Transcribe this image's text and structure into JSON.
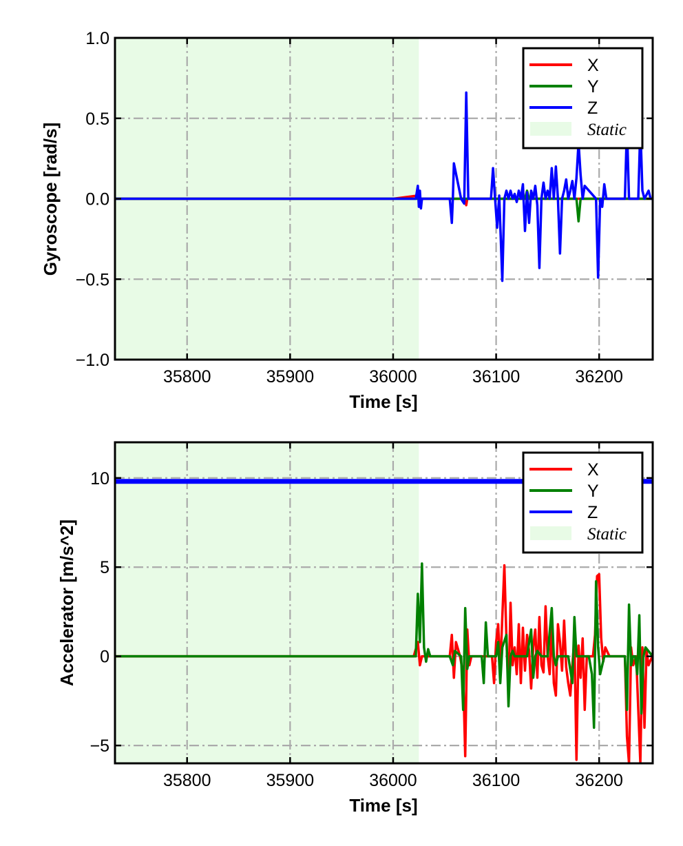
{
  "chart_data": [
    {
      "type": "line",
      "xlabel": "Time [s]",
      "ylabel": "Gyroscope [rad/s]",
      "xlim": [
        35730,
        36252
      ],
      "ylim": [
        -1.0,
        1.0
      ],
      "xticks": [
        35800,
        35900,
        36000,
        36100,
        36200
      ],
      "xtick_labels": [
        "35800",
        "35900",
        "36000",
        "36100",
        "36200"
      ],
      "yticks": [
        1.0,
        0.5,
        0.0,
        -0.5,
        -1.0
      ],
      "ytick_labels": [
        "1.0",
        "0.5",
        "0.0",
        "−0.5",
        "−1.0"
      ],
      "grid": true,
      "legend_position": "top-right",
      "static_region": {
        "label": "Static",
        "x_range": [
          35730,
          36025
        ],
        "color": "#e8fbe6"
      },
      "series": [
        {
          "name": "X",
          "color": "#ff0000",
          "x": [
            35730,
            36000,
            36024,
            36026,
            36028,
            36058,
            36070,
            36071,
            36072,
            36107,
            36200,
            36230,
            36252
          ],
          "y": [
            0.0,
            0.0,
            0.02,
            -0.03,
            0.0,
            0.0,
            0.0,
            -0.04,
            0.0,
            0.0,
            0.0,
            0.0,
            0.0
          ]
        },
        {
          "name": "Y",
          "color": "#008000",
          "x": [
            35730,
            36100,
            36128,
            36130,
            36132,
            36178,
            36180,
            36182,
            36252
          ],
          "y": [
            0.0,
            0.0,
            0.0,
            0.05,
            0.0,
            0.0,
            -0.14,
            0.0,
            0.0
          ]
        },
        {
          "name": "Z",
          "color": "#0000ff",
          "x": [
            35730,
            36022,
            36024,
            36025,
            36026,
            36027,
            36028,
            36055,
            36057,
            36058,
            36059,
            36066,
            36069,
            36071,
            36073,
            36095,
            36097,
            36099,
            36101,
            36103,
            36106,
            36108,
            36110,
            36112,
            36114,
            36116,
            36118,
            36120,
            36122,
            36124,
            36126,
            36128,
            36130,
            36132,
            36134,
            36136,
            36138,
            36140,
            36142,
            36144,
            36146,
            36148,
            36150,
            36152,
            36154,
            36156,
            36158,
            36160,
            36162,
            36164,
            36166,
            36168,
            36170,
            36172,
            36174,
            36176,
            36178,
            36180,
            36182,
            36184,
            36186,
            36197,
            36199,
            36201,
            36203,
            36205,
            36207,
            36210,
            36225,
            36227,
            36229,
            36231,
            36238,
            36240,
            36242,
            36244,
            36248,
            36250,
            36252
          ],
          "y": [
            0.0,
            0.0,
            0.08,
            -0.05,
            0.05,
            -0.06,
            0.0,
            0.0,
            -0.15,
            0.0,
            0.22,
            0.0,
            -0.03,
            0.66,
            0.0,
            0.0,
            0.19,
            0.0,
            -0.18,
            0.02,
            -0.51,
            0.0,
            0.05,
            0.0,
            0.05,
            0.0,
            0.03,
            -0.02,
            0.05,
            0.0,
            0.09,
            -0.2,
            0.04,
            -0.15,
            0.05,
            0.0,
            0.08,
            -0.04,
            -0.43,
            0.0,
            0.1,
            0.0,
            0.05,
            0.0,
            0.19,
            0.0,
            0.2,
            0.0,
            -0.34,
            0.0,
            0.05,
            0.12,
            0.0,
            0.05,
            0.11,
            0.0,
            0.13,
            0.35,
            0.15,
            0.0,
            0.08,
            0.0,
            -0.49,
            0.0,
            -0.05,
            0.09,
            0.0,
            0.0,
            0.0,
            0.45,
            0.0,
            0.0,
            0.0,
            0.45,
            0.05,
            0.0,
            0.05,
            0.0,
            0.0
          ]
        }
      ]
    },
    {
      "type": "line",
      "xlabel": "Time [s]",
      "ylabel": "Accelerator [m/s^2]",
      "xlim": [
        35730,
        36252
      ],
      "ylim": [
        -6.0,
        12.0
      ],
      "xticks": [
        35800,
        35900,
        36000,
        36100,
        36200
      ],
      "xtick_labels": [
        "35800",
        "35900",
        "36000",
        "36100",
        "36200"
      ],
      "yticks": [
        10,
        5,
        0,
        -5
      ],
      "ytick_labels": [
        "10",
        "5",
        "0",
        "−5"
      ],
      "grid": true,
      "legend_position": "top-right",
      "static_region": {
        "label": "Static",
        "x_range": [
          35730,
          36025
        ],
        "color": "#e8fbe6"
      },
      "series": [
        {
          "name": "X",
          "color": "#ff0000",
          "x": [
            35730,
            36020,
            36024,
            36026,
            36028,
            36055,
            36057,
            36059,
            36061,
            36065,
            36068,
            36070,
            36072,
            36074,
            36076,
            36096,
            36098,
            36100,
            36102,
            36104,
            36106,
            36108,
            36110,
            36112,
            36114,
            36116,
            36118,
            36120,
            36122,
            36124,
            36126,
            36128,
            36130,
            36132,
            36134,
            36136,
            36138,
            36140,
            36142,
            36144,
            36146,
            36148,
            36150,
            36152,
            36154,
            36156,
            36158,
            36160,
            36162,
            36164,
            36166,
            36168,
            36170,
            36172,
            36174,
            36176,
            36178,
            36180,
            36182,
            36184,
            36186,
            36188,
            36194,
            36196,
            36198,
            36200,
            36202,
            36204,
            36206,
            36210,
            36225,
            36227,
            36229,
            36231,
            36233,
            36236,
            36238,
            36240,
            36242,
            36244,
            36246,
            36248,
            36250,
            36252
          ],
          "y": [
            0.0,
            0.0,
            0.8,
            -0.5,
            0.0,
            0.0,
            1.2,
            -1.2,
            0.8,
            0.0,
            -1.0,
            -5.6,
            1.5,
            -0.5,
            0.0,
            0.0,
            -1.5,
            0.8,
            1.8,
            -0.8,
            2.2,
            5.1,
            1.0,
            -2.0,
            3.0,
            -0.5,
            0.5,
            -1.0,
            1.8,
            -1.5,
            1.6,
            -0.8,
            1.2,
            0.3,
            -1.8,
            0.5,
            1.5,
            -1.2,
            2.2,
            -0.5,
            -0.9,
            2.8,
            0.0,
            -1.0,
            2.0,
            -1.5,
            -2.2,
            1.8,
            0.8,
            -0.8,
            2.0,
            -0.6,
            -1.5,
            -2.2,
            -0.5,
            1.0,
            -5.8,
            0.6,
            -1.2,
            1.0,
            -3.0,
            0.0,
            0.0,
            1.2,
            4.5,
            4.6,
            1.0,
            -0.3,
            0.5,
            0.0,
            0.0,
            -4.5,
            -6.0,
            0.5,
            -0.5,
            0.0,
            -3.0,
            -6.0,
            0.5,
            -4.0,
            0.3,
            -0.5,
            -0.2,
            0.0
          ]
        },
        {
          "name": "Y",
          "color": "#008000",
          "x": [
            35730,
            36020,
            36022,
            36024,
            36026,
            36028,
            36030,
            36032,
            36034,
            36036,
            36055,
            36058,
            36060,
            36066,
            36068,
            36070,
            36072,
            36074,
            36078,
            36086,
            36088,
            36090,
            36092,
            36100,
            36102,
            36104,
            36106,
            36110,
            36112,
            36114,
            36116,
            36118,
            36130,
            36134,
            36136,
            36138,
            36140,
            36144,
            36150,
            36154,
            36156,
            36158,
            36160,
            36170,
            36174,
            36176,
            36178,
            36184,
            36190,
            36193,
            36195,
            36197,
            36199,
            36201,
            36205,
            36212,
            36225,
            36227,
            36229,
            36231,
            36233,
            36235,
            36237,
            36239,
            36241,
            36243,
            36245,
            36252
          ],
          "y": [
            0.0,
            0.0,
            0.0,
            3.5,
            0.8,
            5.2,
            0.5,
            -0.3,
            0.4,
            0.0,
            0.0,
            -0.5,
            0.3,
            0.0,
            -3.0,
            2.7,
            -0.7,
            0.0,
            0.0,
            0.0,
            -1.5,
            1.9,
            0.0,
            0.0,
            0.8,
            -1.5,
            0.5,
            1.2,
            -2.8,
            0.0,
            0.3,
            0.0,
            0.0,
            1.5,
            -1.2,
            0.0,
            0.3,
            0.0,
            0.0,
            2.7,
            0.0,
            -0.5,
            0.0,
            0.0,
            -1.5,
            2.2,
            0.0,
            0.0,
            0.0,
            -1.0,
            -4.0,
            4.2,
            0.5,
            -1.0,
            0.0,
            0.0,
            0.0,
            -3.0,
            2.9,
            -0.5,
            0.0,
            0.0,
            -1.0,
            2.3,
            -3.2,
            0.0,
            0.5,
            0.0
          ]
        },
        {
          "name": "Z",
          "color": "#0000ff",
          "x": [
            35730,
            36252
          ],
          "y": [
            9.81,
            9.81
          ]
        }
      ]
    }
  ]
}
